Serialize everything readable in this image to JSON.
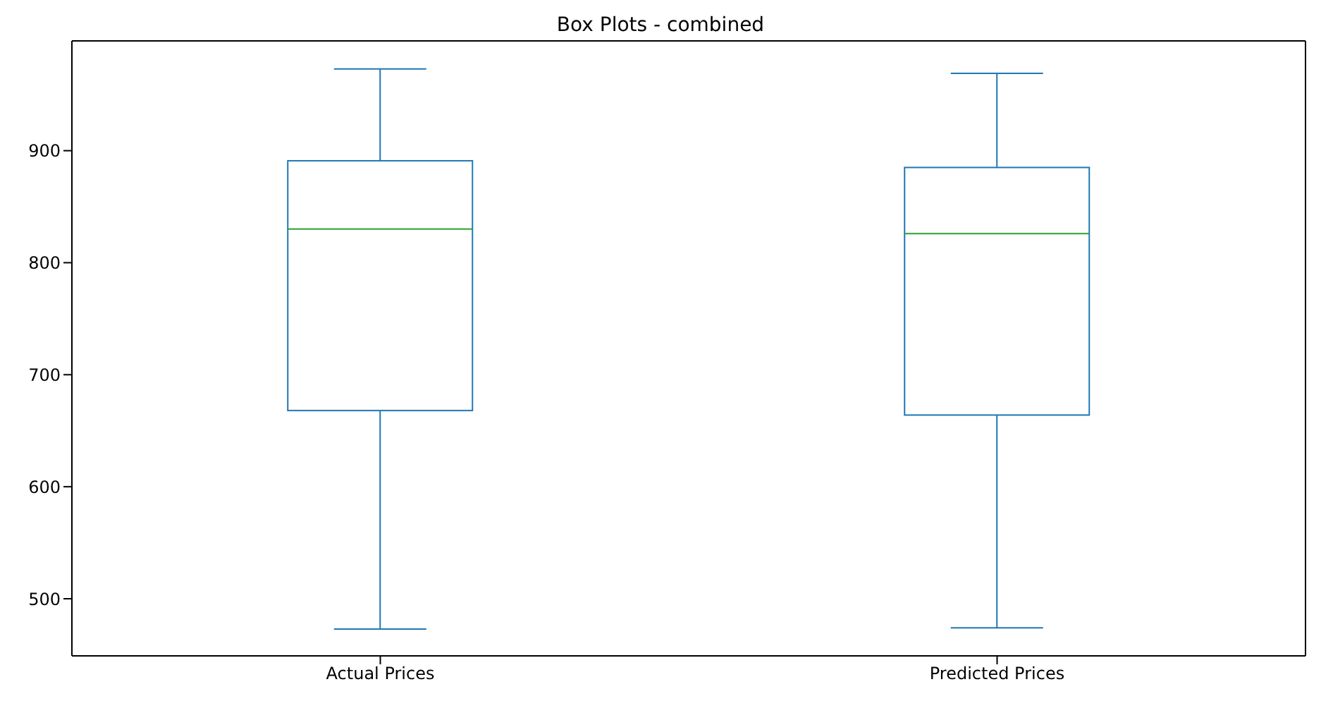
{
  "chart_data": {
    "type": "box",
    "title": "Box Plots - combined",
    "categories": [
      "Actual Prices",
      "Predicted Prices"
    ],
    "color": "#1f77b4",
    "boxes": [
      {
        "low": 473,
        "q1": 668,
        "median": 830,
        "q3": 891,
        "high": 973
      },
      {
        "low": 474,
        "q1": 664,
        "median": 826,
        "q3": 885,
        "high": 969
      }
    ],
    "ylim": [
      449,
      998
    ],
    "yticks": [
      500,
      600,
      700,
      800,
      900
    ],
    "grid": false
  }
}
